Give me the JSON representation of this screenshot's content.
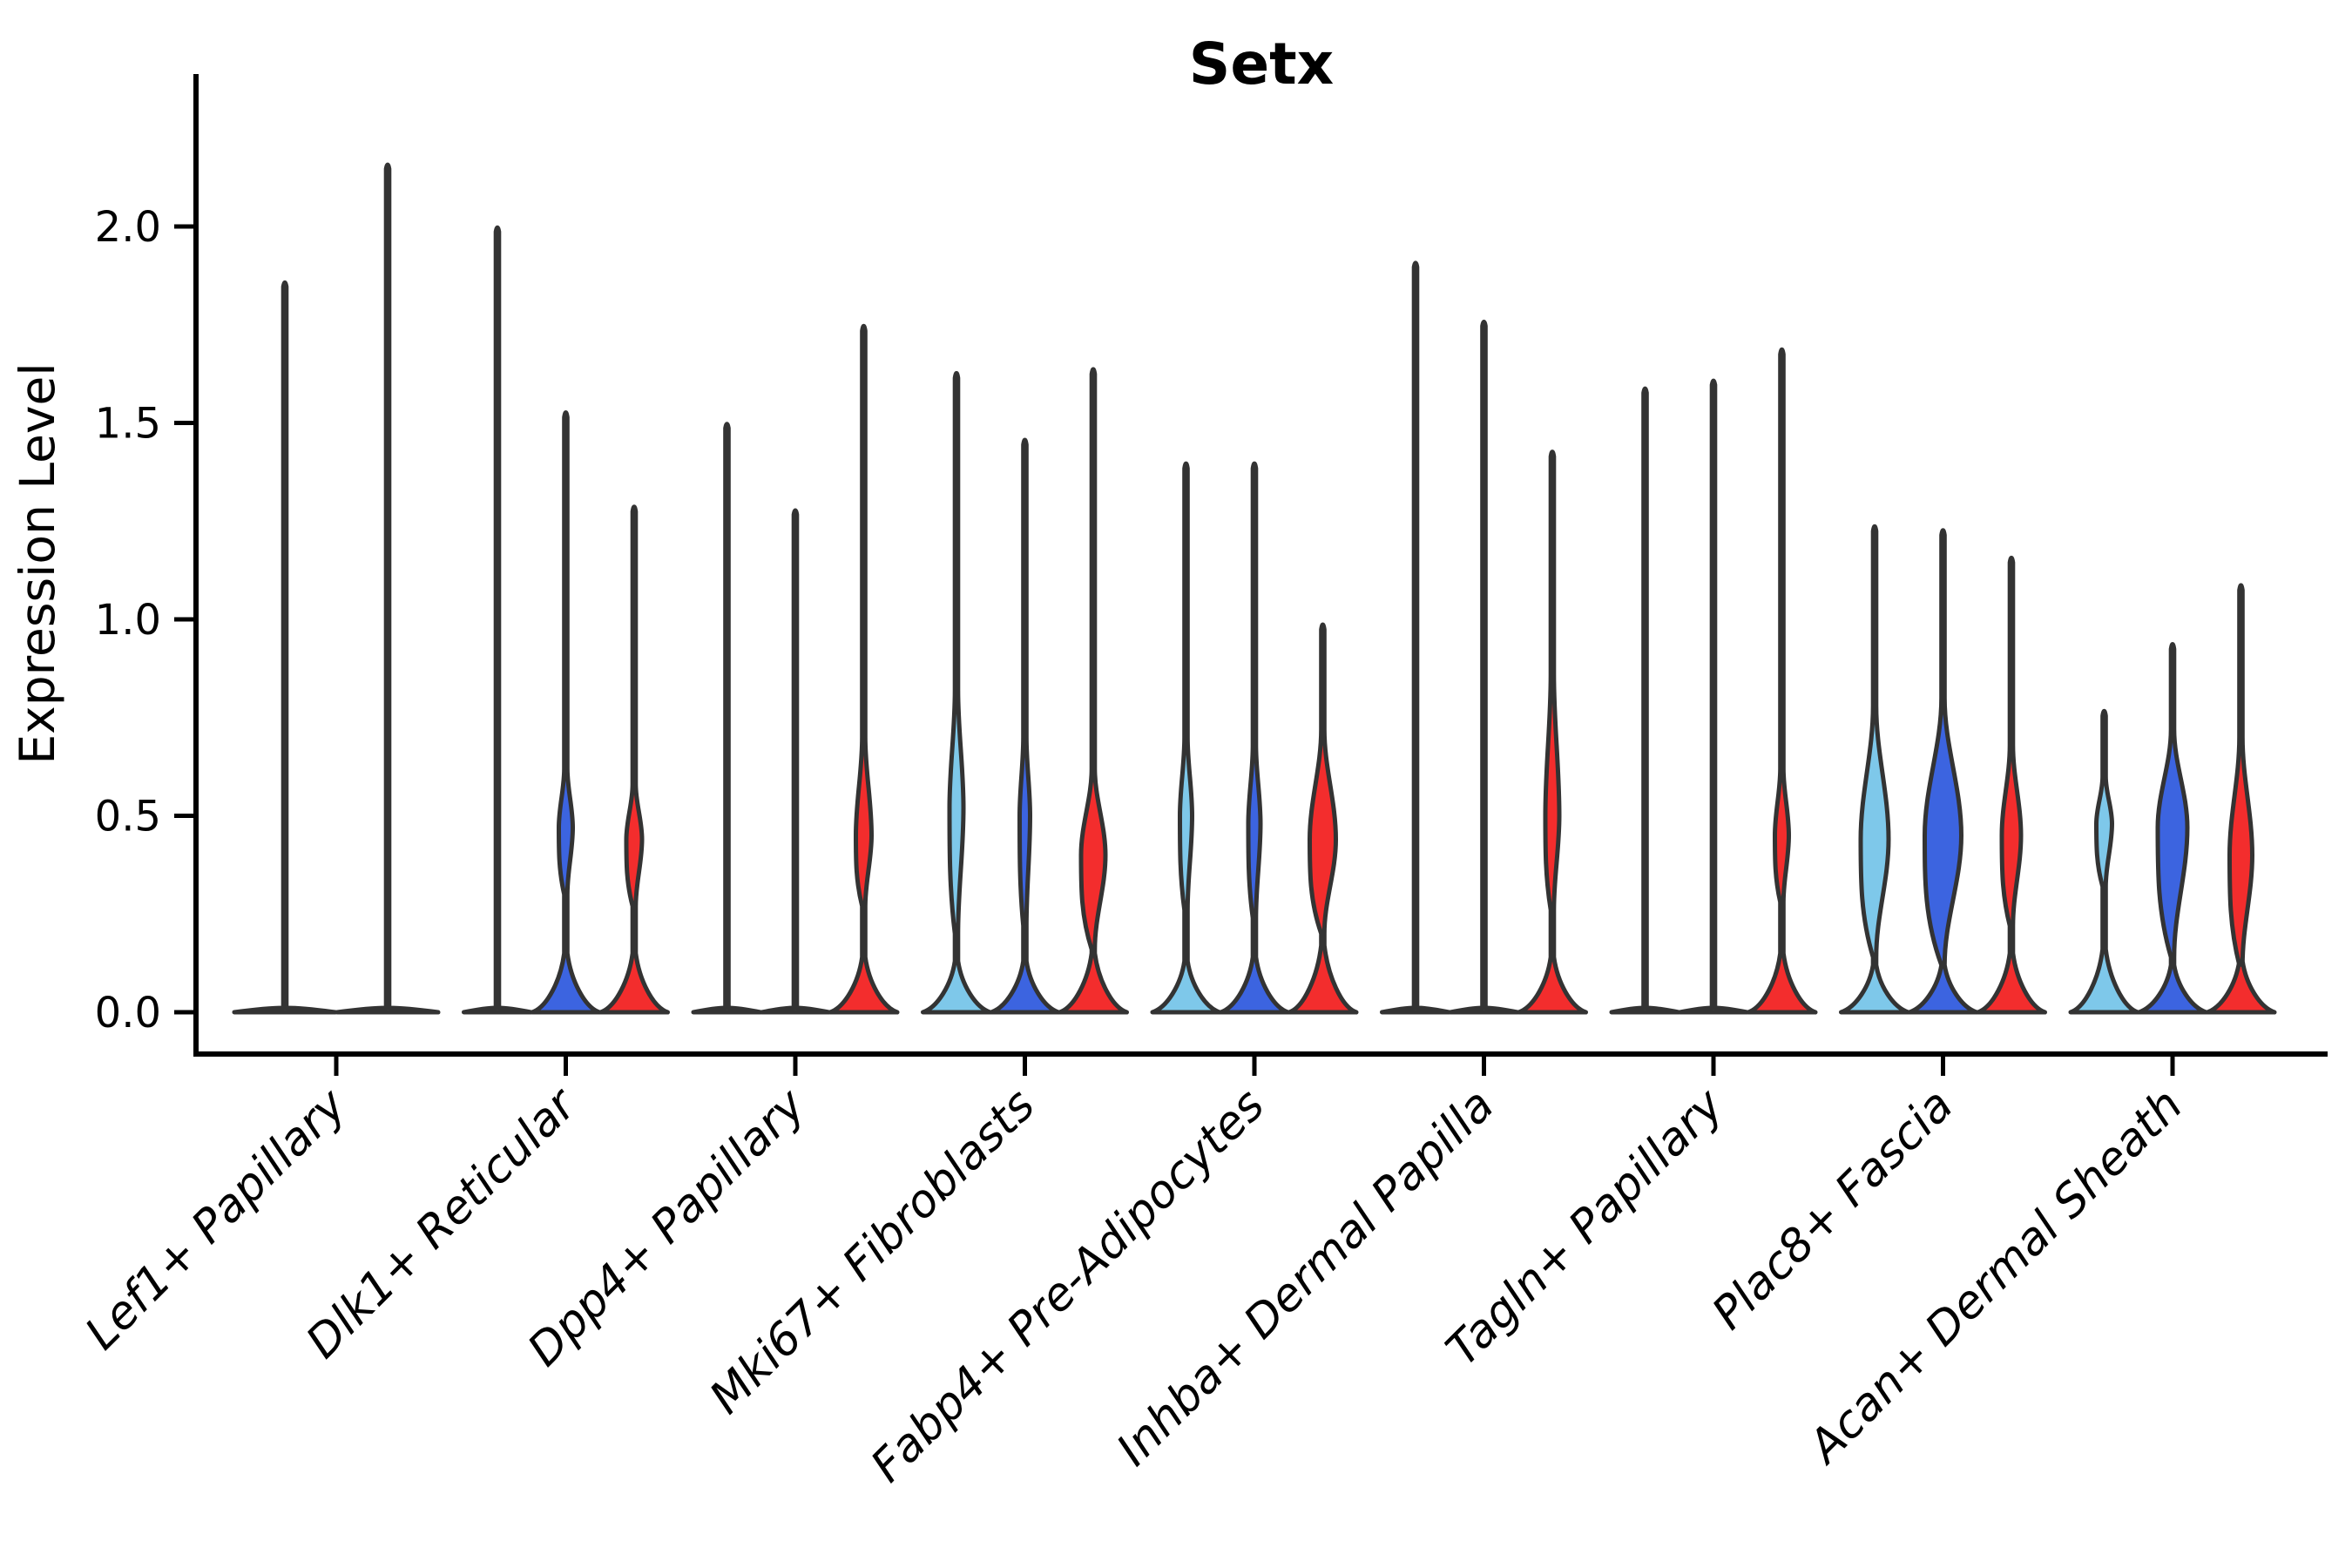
{
  "page": {
    "background": "#ffffff"
  },
  "chart_data": {
    "type": "violin",
    "title": "Setx",
    "ylabel": "Expression Level",
    "ylim": [
      0,
      2.3
    ],
    "ytick_values": [
      0.0,
      0.5,
      1.0,
      1.5,
      2.0
    ],
    "ytick_labels": [
      "0.0",
      "0.5",
      "1.0",
      "1.5",
      "2.0"
    ],
    "grid": false,
    "legend": "none",
    "palette": {
      "split1": "#7EC8EA",
      "split2": "#3C64E0",
      "split3": "#F32D2D",
      "flat": "#3D3D3D",
      "edge": "#333333"
    },
    "categories": [
      "Lef1+ Papillary",
      "Dlk1+ Reticular",
      "Dpp4+ Papillary",
      "Mki67+ Fibroblasts",
      "Fabp4+ Pre-Adipocytes",
      "Inhba+ Dermal Papilla",
      "Tagln+ Papillary",
      "Plac8+ Fascia",
      "Acan+ Dermal Sheath"
    ],
    "groups": [
      {
        "category": "Lef1+ Papillary",
        "violins": [
          {
            "color": "flat",
            "max": 1.86
          },
          {
            "color": "flat",
            "max": 2.16
          }
        ]
      },
      {
        "category": "Dlk1+ Reticular",
        "violins": [
          {
            "color": "flat",
            "max": 2.0
          },
          {
            "color": "split2",
            "max": 1.53,
            "base": 0.15,
            "bulge": {
              "lo": 0.3,
              "peak": 0.47,
              "hi": 0.62,
              "hw": 8
            }
          },
          {
            "color": "split3",
            "max": 1.29,
            "base": 0.15,
            "bulge": {
              "lo": 0.27,
              "peak": 0.44,
              "hi": 0.58,
              "hw": 9
            }
          }
        ]
      },
      {
        "category": "Dpp4+ Papillary",
        "violins": [
          {
            "color": "flat",
            "max": 1.5
          },
          {
            "color": "flat",
            "max": 1.28
          },
          {
            "color": "split3",
            "max": 1.75,
            "base": 0.14,
            "bulge": {
              "lo": 0.27,
              "peak": 0.45,
              "hi": 0.7,
              "hw": 9
            }
          }
        ]
      },
      {
        "category": "Mki67+ Fibroblasts",
        "violins": [
          {
            "color": "split1",
            "max": 1.63,
            "base": 0.13,
            "bulge": {
              "lo": 0.2,
              "peak": 0.52,
              "hi": 0.82,
              "hw": 8
            }
          },
          {
            "color": "split2",
            "max": 1.46,
            "base": 0.13,
            "bulge": {
              "lo": 0.22,
              "peak": 0.5,
              "hi": 0.7,
              "hw": 6
            }
          },
          {
            "color": "split3",
            "max": 1.64,
            "base": 0.15,
            "bulge": {
              "lo": 0.16,
              "peak": 0.4,
              "hi": 0.62,
              "hw": 14
            }
          }
        ]
      },
      {
        "category": "Fabp4+ Pre-Adipocytes",
        "violins": [
          {
            "color": "split1",
            "max": 1.4,
            "base": 0.13,
            "bulge": {
              "lo": 0.26,
              "peak": 0.5,
              "hi": 0.7,
              "hw": 7
            }
          },
          {
            "color": "split2",
            "max": 1.4,
            "base": 0.14,
            "bulge": {
              "lo": 0.24,
              "peak": 0.48,
              "hi": 0.68,
              "hw": 7
            }
          },
          {
            "color": "split3",
            "max": 0.99,
            "base": 0.17,
            "bulge": {
              "lo": 0.2,
              "peak": 0.44,
              "hi": 0.72,
              "hw": 15
            }
          }
        ]
      },
      {
        "category": "Inhba+ Dermal Papilla",
        "violins": [
          {
            "color": "flat",
            "max": 1.91
          },
          {
            "color": "flat",
            "max": 1.76
          },
          {
            "color": "split3",
            "max": 1.43,
            "base": 0.14,
            "bulge": {
              "lo": 0.26,
              "peak": 0.5,
              "hi": 0.86,
              "hw": 8
            }
          }
        ]
      },
      {
        "category": "Tagln+ Papillary",
        "violins": [
          {
            "color": "flat",
            "max": 1.59
          },
          {
            "color": "flat",
            "max": 1.61
          },
          {
            "color": "split3",
            "max": 1.69,
            "base": 0.15,
            "bulge": {
              "lo": 0.28,
              "peak": 0.45,
              "hi": 0.62,
              "hw": 8
            }
          }
        ]
      },
      {
        "category": "Plac8+ Fascia",
        "violins": [
          {
            "color": "split1",
            "max": 1.24,
            "base": 0.12,
            "bulge": {
              "lo": 0.14,
              "peak": 0.44,
              "hi": 0.78,
              "hw": 16
            }
          },
          {
            "color": "split2",
            "max": 1.23,
            "base": 0.12,
            "bulge": {
              "lo": 0.12,
              "peak": 0.45,
              "hi": 0.8,
              "hw": 21
            }
          },
          {
            "color": "split3",
            "max": 1.16,
            "base": 0.15,
            "bulge": {
              "lo": 0.22,
              "peak": 0.45,
              "hi": 0.68,
              "hw": 11
            }
          }
        ]
      },
      {
        "category": "Acan+ Dermal Sheath",
        "violins": [
          {
            "color": "split1",
            "max": 0.77,
            "base": 0.16,
            "bulge": {
              "lo": 0.32,
              "peak": 0.48,
              "hi": 0.6,
              "hw": 9
            }
          },
          {
            "color": "split2",
            "max": 0.94,
            "base": 0.12,
            "bulge": {
              "lo": 0.14,
              "peak": 0.47,
              "hi": 0.72,
              "hw": 17
            }
          },
          {
            "color": "split3",
            "max": 1.09,
            "base": 0.13,
            "bulge": {
              "lo": 0.12,
              "peak": 0.4,
              "hi": 0.7,
              "hw": 13
            }
          }
        ]
      }
    ]
  }
}
